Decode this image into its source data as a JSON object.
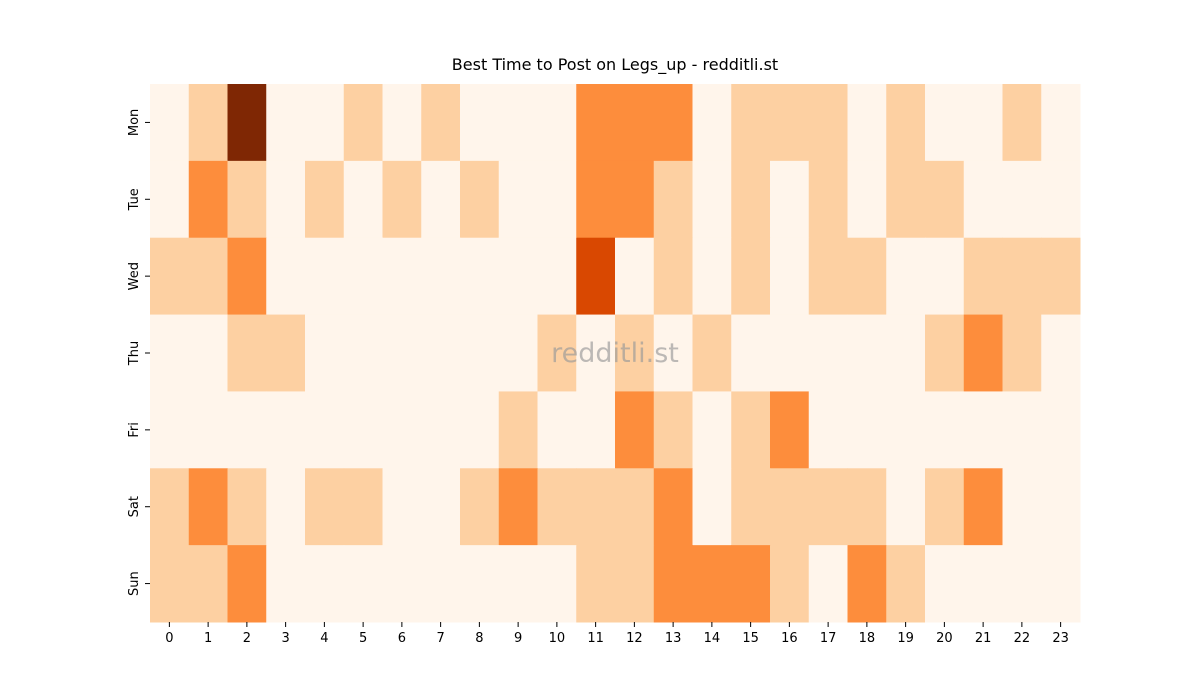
{
  "chart_data": {
    "type": "heatmap",
    "title": "Best Time to Post on Legs_up - redditli.st",
    "watermark": "redditli.st",
    "x": [
      0,
      1,
      2,
      3,
      4,
      5,
      6,
      7,
      8,
      9,
      10,
      11,
      12,
      13,
      14,
      15,
      16,
      17,
      18,
      19,
      20,
      21,
      22,
      23
    ],
    "y": [
      "Mon",
      "Tue",
      "Wed",
      "Thu",
      "Fri",
      "Sat",
      "Sun"
    ],
    "z": [
      [
        0,
        1,
        4,
        0,
        0,
        1,
        0,
        1,
        0,
        0,
        0,
        2,
        2,
        2,
        0,
        1,
        1,
        1,
        0,
        1,
        0,
        0,
        1,
        0
      ],
      [
        0,
        2,
        1,
        0,
        1,
        0,
        1,
        0,
        1,
        0,
        0,
        2,
        2,
        1,
        0,
        1,
        0,
        1,
        0,
        1,
        1,
        0,
        0,
        0
      ],
      [
        1,
        1,
        2,
        0,
        0,
        0,
        0,
        0,
        0,
        0,
        0,
        3,
        0,
        1,
        0,
        1,
        0,
        1,
        1,
        0,
        0,
        1,
        1,
        1
      ],
      [
        0,
        0,
        1,
        1,
        0,
        0,
        0,
        0,
        0,
        0,
        1,
        0,
        1,
        0,
        1,
        0,
        0,
        0,
        0,
        0,
        1,
        2,
        1,
        0
      ],
      [
        0,
        0,
        0,
        0,
        0,
        0,
        0,
        0,
        0,
        1,
        0,
        0,
        2,
        1,
        0,
        1,
        2,
        0,
        0,
        0,
        0,
        0,
        0,
        0
      ],
      [
        1,
        2,
        1,
        0,
        1,
        1,
        0,
        0,
        1,
        2,
        1,
        1,
        1,
        2,
        0,
        1,
        1,
        1,
        1,
        0,
        1,
        2,
        0,
        0
      ],
      [
        1,
        1,
        2,
        0,
        0,
        0,
        0,
        0,
        0,
        0,
        0,
        1,
        1,
        2,
        2,
        2,
        1,
        0,
        2,
        1,
        0,
        0,
        0,
        0
      ]
    ],
    "zlim": [
      0,
      4
    ],
    "color_stops": [
      "#fff5eb",
      "#fdd0a2",
      "#fd8d3c",
      "#d94801",
      "#7f2704"
    ]
  }
}
